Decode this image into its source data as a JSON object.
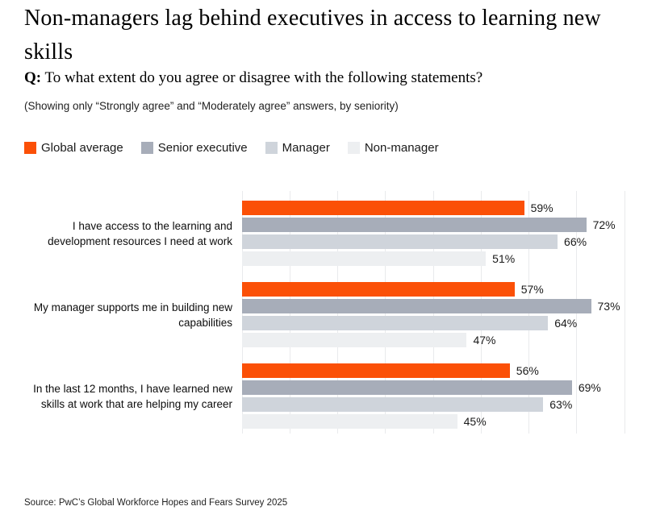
{
  "header": {
    "title": "Non-managers lag behind executives in access to learning new skills",
    "question_label": "Q:",
    "question_text": "To what extent do you agree or disagree with the following statements?",
    "subtitle": "(Showing only “Strongly agree” and “Moderately agree” answers, by seniority)"
  },
  "footer": {
    "source": "Source: PwC’s Global Workforce Hopes and Fears Survey 2025"
  },
  "colors": {
    "global_average": "#FB5007",
    "senior_executive": "#A7ADB9",
    "manager": "#CFD4DB",
    "non_manager": "#EDEFF1",
    "gridline": "#E9EAEC",
    "text": "#1A1A1A"
  },
  "chart_data": {
    "type": "bar",
    "orientation": "horizontal",
    "categories": [
      "I have access to the learning and development resources I need at work",
      "My manager supports me in building new capabilities",
      "In the last 12 months, I have learned new skills at work that are helping my career"
    ],
    "series": [
      {
        "name": "Global average",
        "color": "#FB5007",
        "values": [
          59,
          57,
          56
        ]
      },
      {
        "name": "Senior executive",
        "color": "#A7ADB9",
        "values": [
          72,
          73,
          69
        ]
      },
      {
        "name": "Manager",
        "color": "#CFD4DB",
        "values": [
          66,
          64,
          63
        ]
      },
      {
        "name": "Non-manager",
        "color": "#EDEFF1",
        "values": [
          51,
          47,
          45
        ]
      }
    ],
    "value_suffix": "%",
    "xlim": [
      0,
      80
    ],
    "gridline_interval": 10,
    "grid": true,
    "legend_position": "top",
    "value_labels": "outside-end"
  }
}
